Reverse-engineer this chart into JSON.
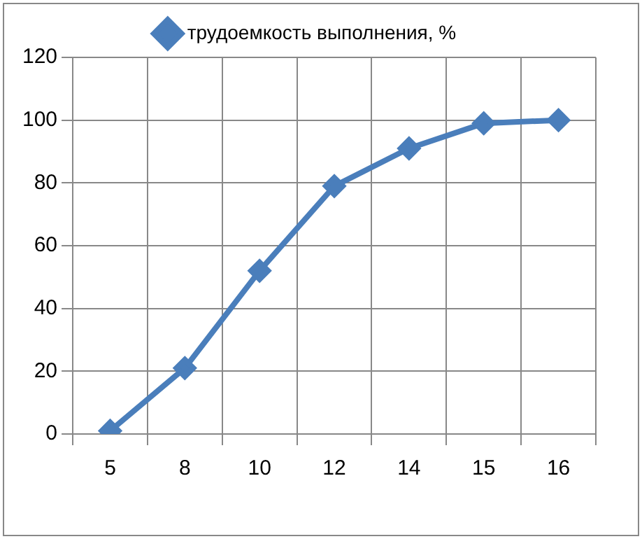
{
  "chart_data": {
    "type": "line",
    "categories": [
      "5",
      "8",
      "10",
      "12",
      "14",
      "15",
      "16"
    ],
    "series": [
      {
        "name": "трудоемкость выполнения, %",
        "color": "#4a7ebb",
        "values": [
          1,
          21,
          52,
          79,
          91,
          99,
          100
        ]
      }
    ],
    "ylim": [
      0,
      120
    ],
    "yticks": [
      0,
      20,
      40,
      60,
      80,
      100,
      120
    ],
    "grid": true,
    "legend": "top",
    "marker": "diamond",
    "line_style": "solid"
  }
}
